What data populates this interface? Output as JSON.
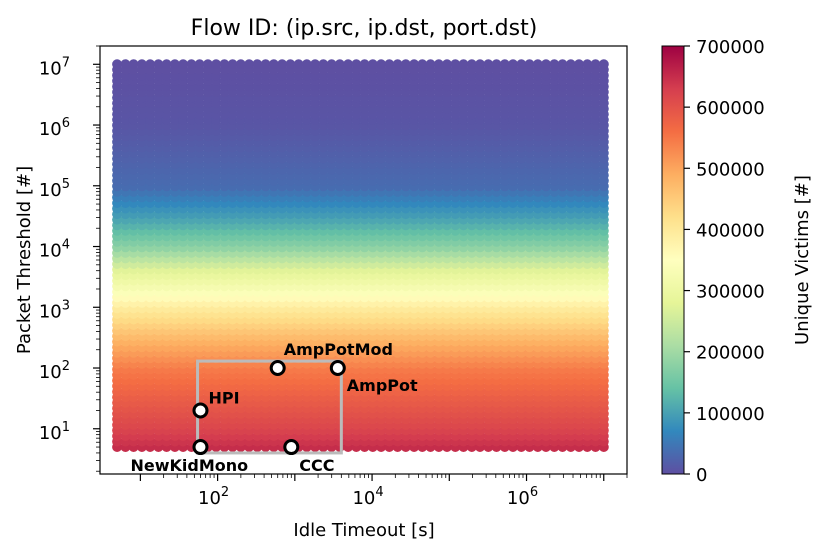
{
  "chart_data": {
    "type": "scatter",
    "title": "Flow ID: (ip.src, ip.dst, port.dst)",
    "xlabel": "Idle Timeout [s]",
    "ylabel": "Packet Threshold [#]",
    "xscale": "log",
    "yscale": "log",
    "xlim": [
      3,
      20000000
    ],
    "ylim": [
      1.8,
      20000000
    ],
    "x_ticks": [
      {
        "value": 100,
        "base": "10",
        "exp": "2"
      },
      {
        "value": 10000,
        "base": "10",
        "exp": "4"
      },
      {
        "value": 1000000,
        "base": "10",
        "exp": "6"
      }
    ],
    "y_ticks": [
      {
        "value": 10,
        "base": "10",
        "exp": "1"
      },
      {
        "value": 100,
        "base": "10",
        "exp": "2"
      },
      {
        "value": 1000,
        "base": "10",
        "exp": "3"
      },
      {
        "value": 10000,
        "base": "10",
        "exp": "4"
      },
      {
        "value": 100000,
        "base": "10",
        "exp": "5"
      },
      {
        "value": 1000000,
        "base": "10",
        "exp": "6"
      },
      {
        "value": 10000000,
        "base": "10",
        "exp": "7"
      }
    ],
    "grid": false,
    "x_range": [
      5,
      10000000
    ],
    "y_range": [
      5,
      10000000
    ],
    "colormap": "Spectral_r",
    "colorbar": {
      "label": "Unique Victims  [#]",
      "min": 0,
      "max": 700000,
      "ticks": [
        "0",
        "100000",
        "200000",
        "300000",
        "400000",
        "500000",
        "600000",
        "700000"
      ]
    },
    "victims_by_threshold": [
      {
        "threshold": 5,
        "victims": 650000
      },
      {
        "threshold": 10,
        "victims": 620000
      },
      {
        "threshold": 30,
        "victims": 585000
      },
      {
        "threshold": 100,
        "victims": 545000
      },
      {
        "threshold": 300,
        "victims": 480000
      },
      {
        "threshold": 1000,
        "victims": 395000
      },
      {
        "threshold": 2000,
        "victims": 330000
      },
      {
        "threshold": 4000,
        "victims": 280000
      },
      {
        "threshold": 10000,
        "victims": 180000
      },
      {
        "threshold": 30000,
        "victims": 100000
      },
      {
        "threshold": 100000,
        "victims": 35000
      },
      {
        "threshold": 1000000,
        "victims": 8000
      },
      {
        "threshold": 10000000,
        "victims": 0
      }
    ],
    "highlight_box": {
      "x": [
        55,
        4000
      ],
      "y": [
        4,
        130
      ],
      "color": "#bbbbbb"
    },
    "annotations": [
      {
        "label": "AmpPotMod",
        "x": 600,
        "y": 100
      },
      {
        "label": "AmpPot",
        "x": 3600,
        "y": 100
      },
      {
        "label": "HPI",
        "x": 60,
        "y": 20
      },
      {
        "label": "NewKidMono",
        "x": 60,
        "y": 5
      },
      {
        "label": "CCC",
        "x": 900,
        "y": 5
      }
    ]
  }
}
